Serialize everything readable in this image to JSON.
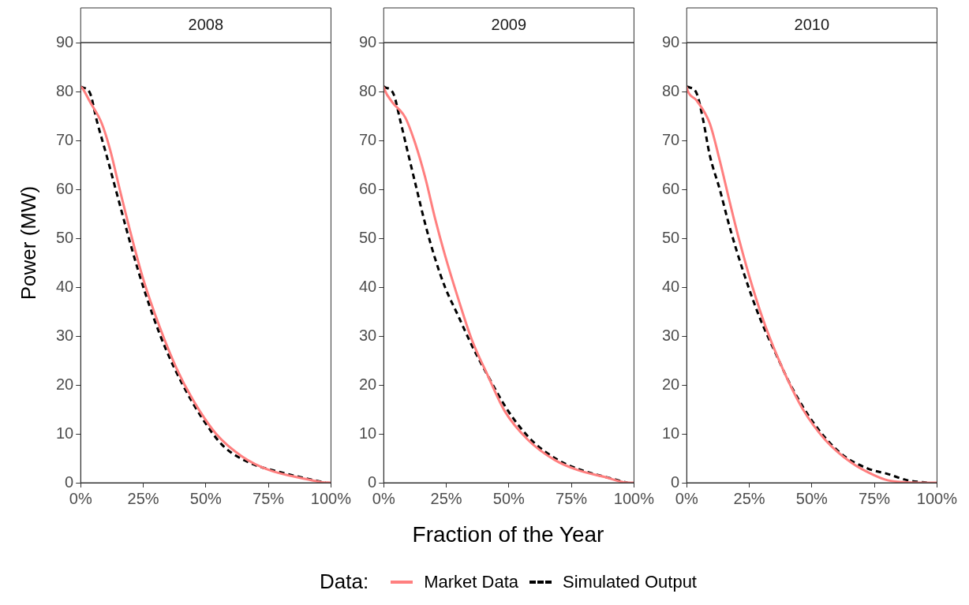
{
  "chart_data": [
    {
      "type": "line",
      "title": "2008",
      "ylabel": "Power (MW)",
      "legend": "bottom",
      "legend_title": "Data:",
      "xlim": [
        0,
        100
      ],
      "xticks": [
        {
          "value": 0,
          "label": "0%"
        },
        {
          "value": 25,
          "label": "25%"
        },
        {
          "value": 50,
          "label": "50%"
        },
        {
          "value": 75,
          "label": "75%"
        },
        {
          "value": 100,
          "label": "100%"
        }
      ],
      "ylim": [
        0,
        90
      ],
      "yticks": [
        0,
        10,
        20,
        30,
        40,
        50,
        60,
        70,
        80,
        90
      ],
      "series": [
        {
          "name": "Market Data",
          "color": "#ff7f7f",
          "line_style": "solid",
          "x": [
            0,
            0.8,
            3.7,
            8.4,
            11.7,
            15.6,
            19.6,
            24.9,
            31.6,
            38.2,
            44.8,
            54.1,
            64.7,
            75.3,
            88.6,
            96.6,
            100
          ],
          "values": [
            81,
            80.6,
            77.9,
            73.5,
            68.2,
            60,
            51.8,
            41.8,
            31.8,
            23.5,
            17,
            10,
            5.3,
            2.6,
            0.9,
            0.1,
            0
          ]
        },
        {
          "name": "Simulated Output",
          "color": "#000000",
          "line_style": "dashed",
          "x": [
            0,
            0.4,
            3.7,
            6.4,
            10.3,
            14.3,
            18.3,
            22.9,
            28.9,
            34.2,
            40.8,
            48.8,
            56.8,
            67.4,
            78,
            89.9,
            97.9
          ],
          "values": [
            81,
            80.9,
            79.7,
            74.1,
            67,
            59.4,
            51.8,
            43.5,
            34.1,
            27.1,
            20,
            13,
            7.6,
            4.1,
            2.4,
            0.9,
            0
          ]
        }
      ]
    },
    {
      "type": "line",
      "title": "2009",
      "xlabel": "Fraction of the Year",
      "xlim": [
        0,
        100
      ],
      "xticks": [
        {
          "value": 0,
          "label": "0%"
        },
        {
          "value": 25,
          "label": "25%"
        },
        {
          "value": 50,
          "label": "50%"
        },
        {
          "value": 75,
          "label": "75%"
        },
        {
          "value": 100,
          "label": "100%"
        }
      ],
      "ylim": [
        0,
        90
      ],
      "yticks": [
        0,
        10,
        20,
        30,
        40,
        50,
        60,
        70,
        80,
        90
      ],
      "series": [
        {
          "color": "#ff7f7f",
          "line_style": "solid",
          "x": [
            0,
            0.4,
            3.3,
            8.6,
            12.6,
            16.6,
            20.5,
            24.5,
            29.8,
            35.1,
            41.7,
            48.3,
            57.6,
            68.2,
            77.5,
            88.1,
            96,
            100
          ],
          "values": [
            81,
            80.3,
            77.9,
            74.7,
            69.4,
            62.4,
            54.1,
            46.5,
            37.6,
            29.4,
            21.8,
            14.7,
            8.8,
            4.7,
            2.6,
            1.2,
            0.1,
            0
          ]
        },
        {
          "color": "#000000",
          "line_style": "dashed",
          "x": [
            0,
            0.4,
            4,
            6.6,
            9.9,
            13.2,
            16.6,
            20.5,
            24.5,
            29.8,
            35.1,
            41.7,
            49.7,
            58.9,
            69.5,
            80.1,
            90.7,
            97.4
          ],
          "values": [
            81,
            80.9,
            79.4,
            74.1,
            67,
            60,
            52.9,
            45.9,
            40,
            34.1,
            28.2,
            21.8,
            14.7,
            8.8,
            4.7,
            2.4,
            0.9,
            0
          ]
        }
      ]
    },
    {
      "type": "line",
      "title": "2010",
      "xlim": [
        0,
        100
      ],
      "xticks": [
        {
          "value": 0,
          "label": "0%"
        },
        {
          "value": 25,
          "label": "25%"
        },
        {
          "value": 50,
          "label": "50%"
        },
        {
          "value": 75,
          "label": "75%"
        },
        {
          "value": 100,
          "label": "100%"
        }
      ],
      "ylim": [
        0,
        90
      ],
      "yticks": [
        0,
        10,
        20,
        30,
        40,
        50,
        60,
        70,
        80,
        90
      ],
      "series": [
        {
          "color": "#ff7f7f",
          "line_style": "solid",
          "x": [
            0,
            0.3,
            3.9,
            9.2,
            13.2,
            17.1,
            21.1,
            26.3,
            31.6,
            38.2,
            46.1,
            55.3,
            65.8,
            75,
            80.3,
            88.2,
            100
          ],
          "values": [
            81,
            80.3,
            78.2,
            73.5,
            65.9,
            57.6,
            49.4,
            40,
            31.8,
            23.5,
            15.3,
            8.8,
            4.1,
            1.5,
            0.5,
            0.1,
            0
          ]
        },
        {
          "color": "#000000",
          "line_style": "dashed",
          "x": [
            0,
            0.7,
            3.9,
            6.6,
            9.2,
            13.2,
            17.1,
            22.4,
            28.9,
            35.5,
            42.1,
            51.3,
            61.8,
            72.4,
            80.3,
            88.2,
            96
          ],
          "values": [
            81,
            80.9,
            79.7,
            74.1,
            67,
            60,
            52.4,
            43.5,
            34.1,
            26.5,
            19.4,
            11.8,
            5.9,
            2.9,
            1.8,
            0.5,
            0
          ]
        }
      ]
    }
  ]
}
